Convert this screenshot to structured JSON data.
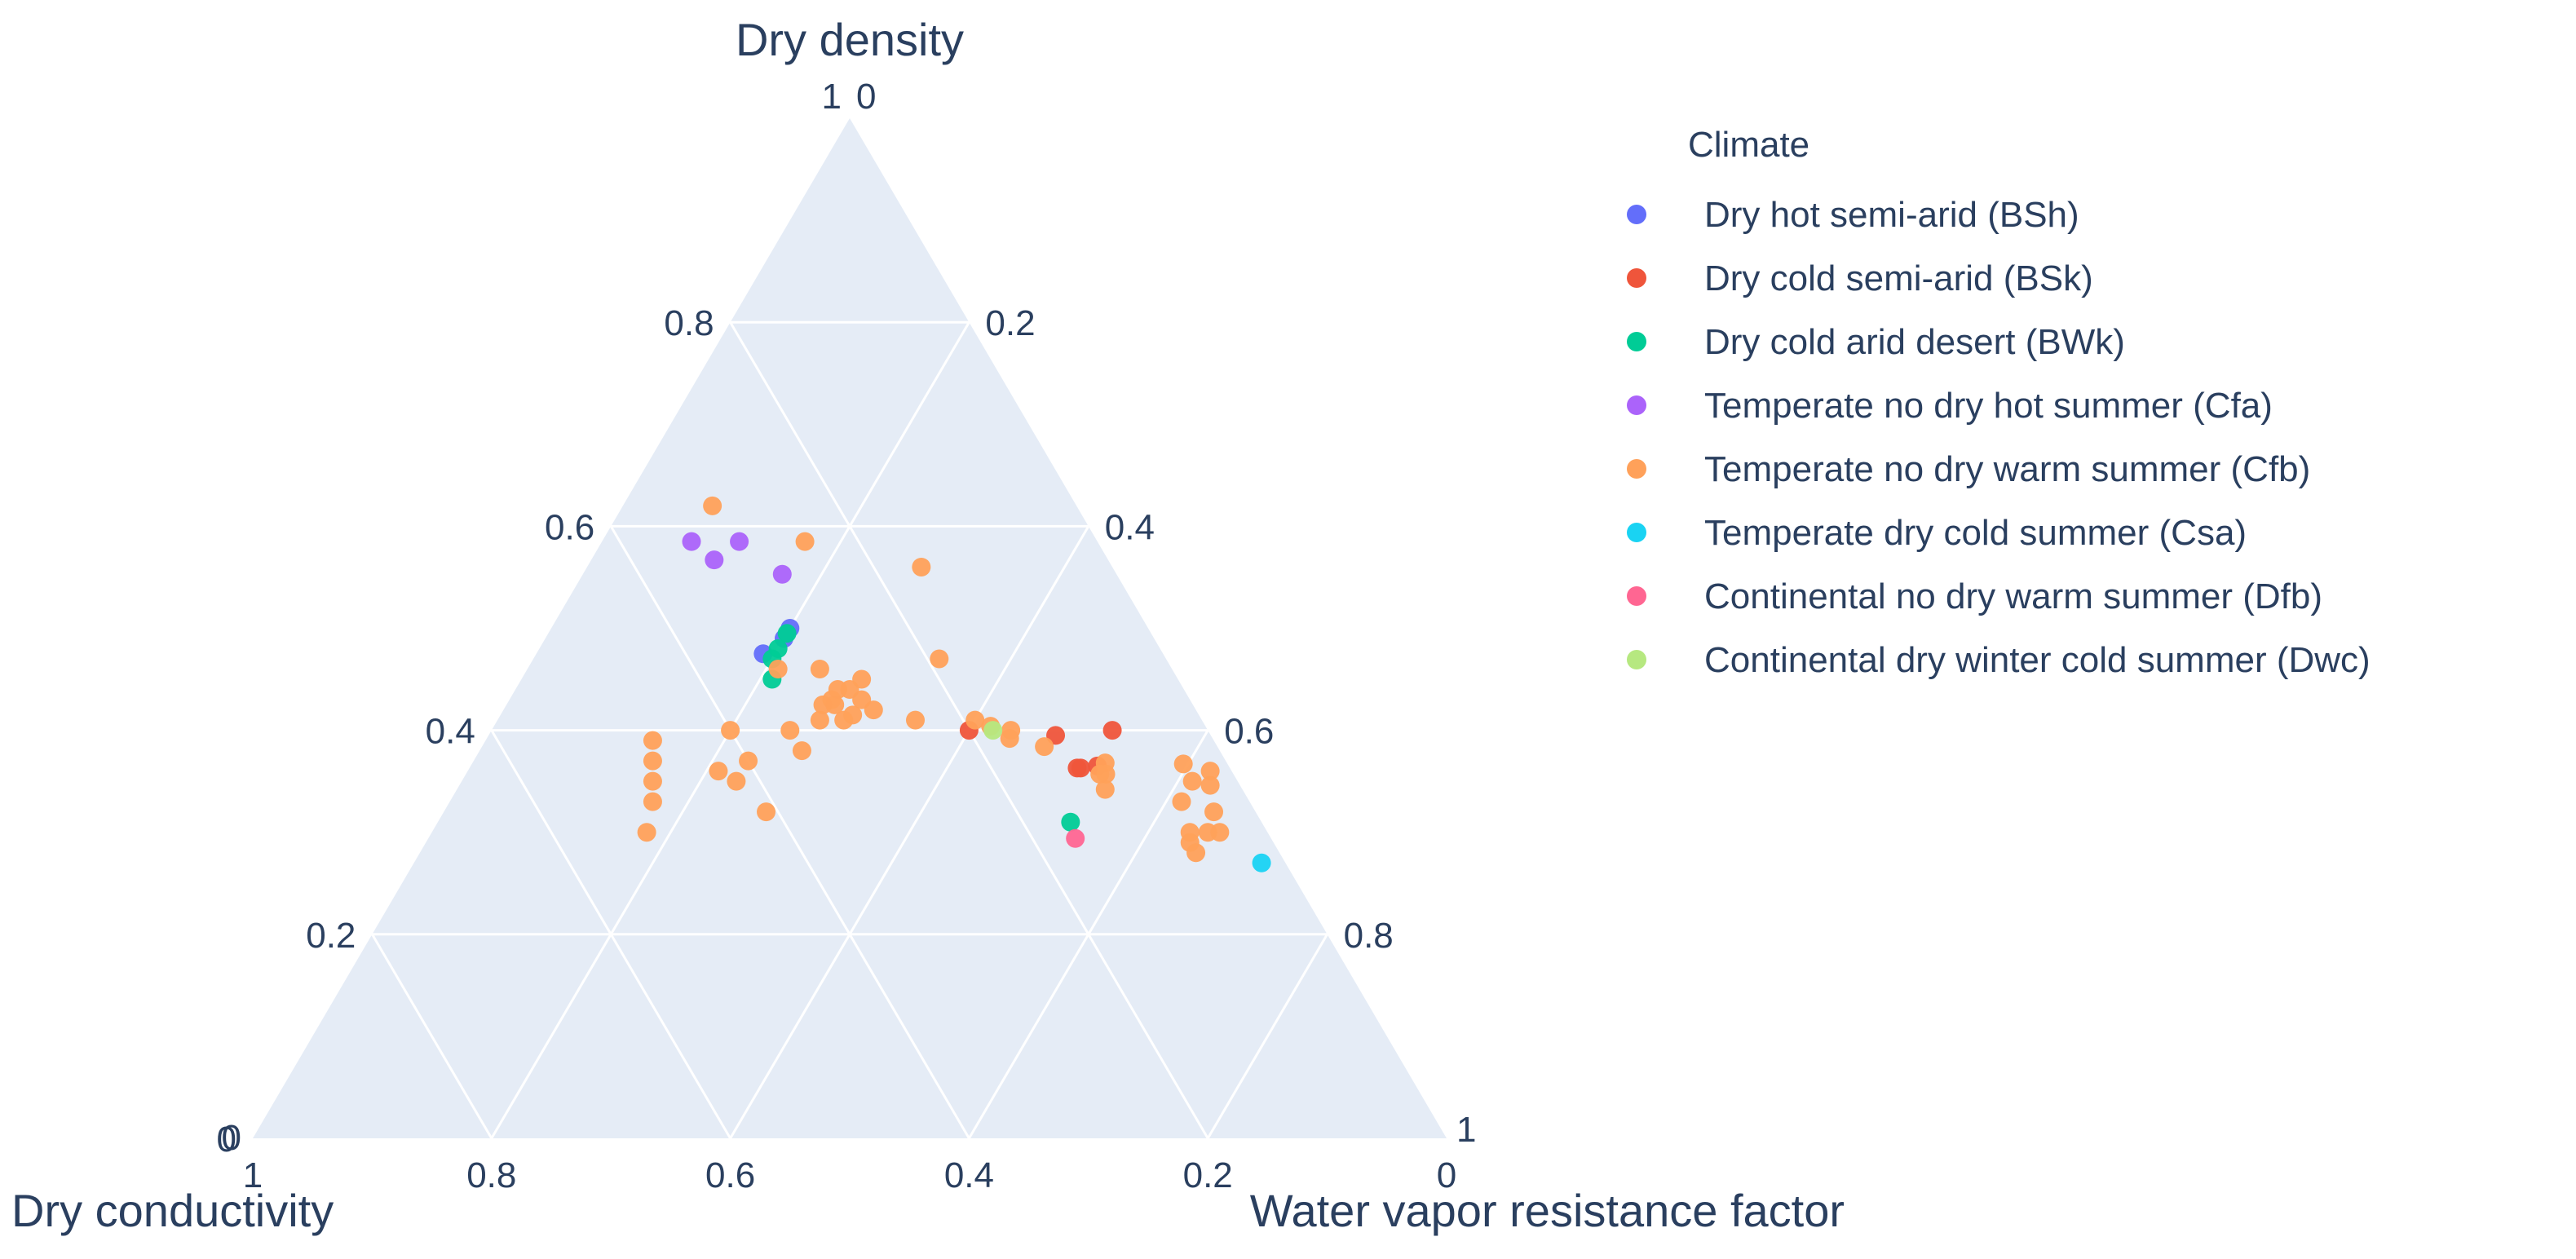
{
  "chart_data": {
    "type": "ternary-scatter",
    "axes": {
      "a": {
        "title": "Dry density",
        "ticks": [
          "0",
          "0.2",
          "0.4",
          "0.6",
          "0.8",
          "1"
        ]
      },
      "b": {
        "title": "Dry conductivity",
        "ticks": [
          "0",
          "0.2",
          "0.4",
          "0.6",
          "0.8",
          "1"
        ]
      },
      "c": {
        "title": "Water vapor resistance factor",
        "ticks": [
          "0",
          "0.2",
          "0.4",
          "0.6",
          "0.8",
          "1"
        ]
      }
    },
    "grid": true,
    "legend": {
      "title": "Climate",
      "position": "right"
    },
    "series": [
      {
        "name": "Dry hot semi-arid (BSh)",
        "color": "#636efa",
        "points": [
          [
            0.5,
            0.3,
            0.2
          ],
          [
            0.475,
            0.335,
            0.19
          ],
          [
            0.49,
            0.31,
            0.2
          ]
        ]
      },
      {
        "name": "Dry cold semi-arid (BSk)",
        "color": "#ef553b",
        "points": [
          [
            0.4,
            0.2,
            0.4
          ],
          [
            0.395,
            0.13,
            0.475
          ],
          [
            0.4,
            0.08,
            0.52
          ],
          [
            0.363,
            0.125,
            0.512
          ],
          [
            0.365,
            0.11,
            0.525
          ],
          [
            0.363,
            0.128,
            0.509
          ]
        ]
      },
      {
        "name": "Dry cold arid desert (BWk)",
        "color": "#00cc96",
        "points": [
          [
            0.495,
            0.305,
            0.2
          ],
          [
            0.48,
            0.32,
            0.2
          ],
          [
            0.47,
            0.33,
            0.2
          ],
          [
            0.45,
            0.34,
            0.21
          ],
          [
            0.31,
            0.16,
            0.53
          ]
        ]
      },
      {
        "name": "Temperate no dry hot summer (Cfa)",
        "color": "#ab63fa",
        "points": [
          [
            0.585,
            0.34,
            0.075
          ],
          [
            0.585,
            0.3,
            0.115
          ],
          [
            0.567,
            0.33,
            0.103
          ],
          [
            0.553,
            0.28,
            0.167
          ]
        ]
      },
      {
        "name": "Temperate no dry warm summer (Cfb)",
        "color": "#ffa15a",
        "points": [
          [
            0.62,
            0.305,
            0.075
          ],
          [
            0.585,
            0.245,
            0.17
          ],
          [
            0.56,
            0.16,
            0.28
          ],
          [
            0.47,
            0.19,
            0.34
          ],
          [
            0.41,
            0.24,
            0.35
          ],
          [
            0.46,
            0.33,
            0.21
          ],
          [
            0.46,
            0.295,
            0.245
          ],
          [
            0.43,
            0.275,
            0.295
          ],
          [
            0.43,
            0.3,
            0.27
          ],
          [
            0.42,
            0.27,
            0.31
          ],
          [
            0.44,
            0.29,
            0.27
          ],
          [
            0.44,
            0.28,
            0.28
          ],
          [
            0.45,
            0.265,
            0.285
          ],
          [
            0.425,
            0.3,
            0.275
          ],
          [
            0.425,
            0.31,
            0.265
          ],
          [
            0.415,
            0.29,
            0.295
          ],
          [
            0.41,
            0.3,
            0.29
          ],
          [
            0.41,
            0.32,
            0.27
          ],
          [
            0.4,
            0.4,
            0.2
          ],
          [
            0.4,
            0.35,
            0.25
          ],
          [
            0.38,
            0.35,
            0.27
          ],
          [
            0.37,
            0.4,
            0.23
          ],
          [
            0.35,
            0.42,
            0.23
          ],
          [
            0.36,
            0.43,
            0.21
          ],
          [
            0.39,
            0.47,
            0.14
          ],
          [
            0.37,
            0.48,
            0.15
          ],
          [
            0.35,
            0.49,
            0.16
          ],
          [
            0.33,
            0.5,
            0.17
          ],
          [
            0.3,
            0.52,
            0.18
          ],
          [
            0.32,
            0.41,
            0.27
          ],
          [
            0.41,
            0.19,
            0.4
          ],
          [
            0.404,
            0.18,
            0.416
          ],
          [
            0.392,
            0.17,
            0.438
          ],
          [
            0.4,
            0.165,
            0.435
          ],
          [
            0.384,
            0.145,
            0.471
          ],
          [
            0.368,
            0.102,
            0.53
          ],
          [
            0.357,
            0.107,
            0.536
          ],
          [
            0.357,
            0.112,
            0.531
          ],
          [
            0.342,
            0.115,
            0.543
          ],
          [
            0.367,
            0.037,
            0.596
          ],
          [
            0.36,
            0.018,
            0.622
          ],
          [
            0.35,
            0.038,
            0.612
          ],
          [
            0.346,
            0.025,
            0.629
          ],
          [
            0.33,
            0.057,
            0.613
          ],
          [
            0.32,
            0.035,
            0.645
          ],
          [
            0.3,
            0.05,
            0.65
          ],
          [
            0.3,
            0.065,
            0.635
          ],
          [
            0.29,
            0.07,
            0.64
          ],
          [
            0.28,
            0.07,
            0.65
          ],
          [
            0.3,
            0.04,
            0.66
          ]
        ]
      },
      {
        "name": "Temperate dry cold summer (Csa)",
        "color": "#19d3f3",
        "points": [
          [
            0.27,
            0.02,
            0.71
          ]
        ]
      },
      {
        "name": "Continental no dry warm summer (Dfb)",
        "color": "#ff6692",
        "points": [
          [
            0.294,
            0.164,
            0.542
          ]
        ]
      },
      {
        "name": "Continental dry winter cold summer (Dwc)",
        "color": "#b6e880",
        "points": [
          [
            0.4,
            0.18,
            0.42
          ]
        ]
      }
    ]
  }
}
